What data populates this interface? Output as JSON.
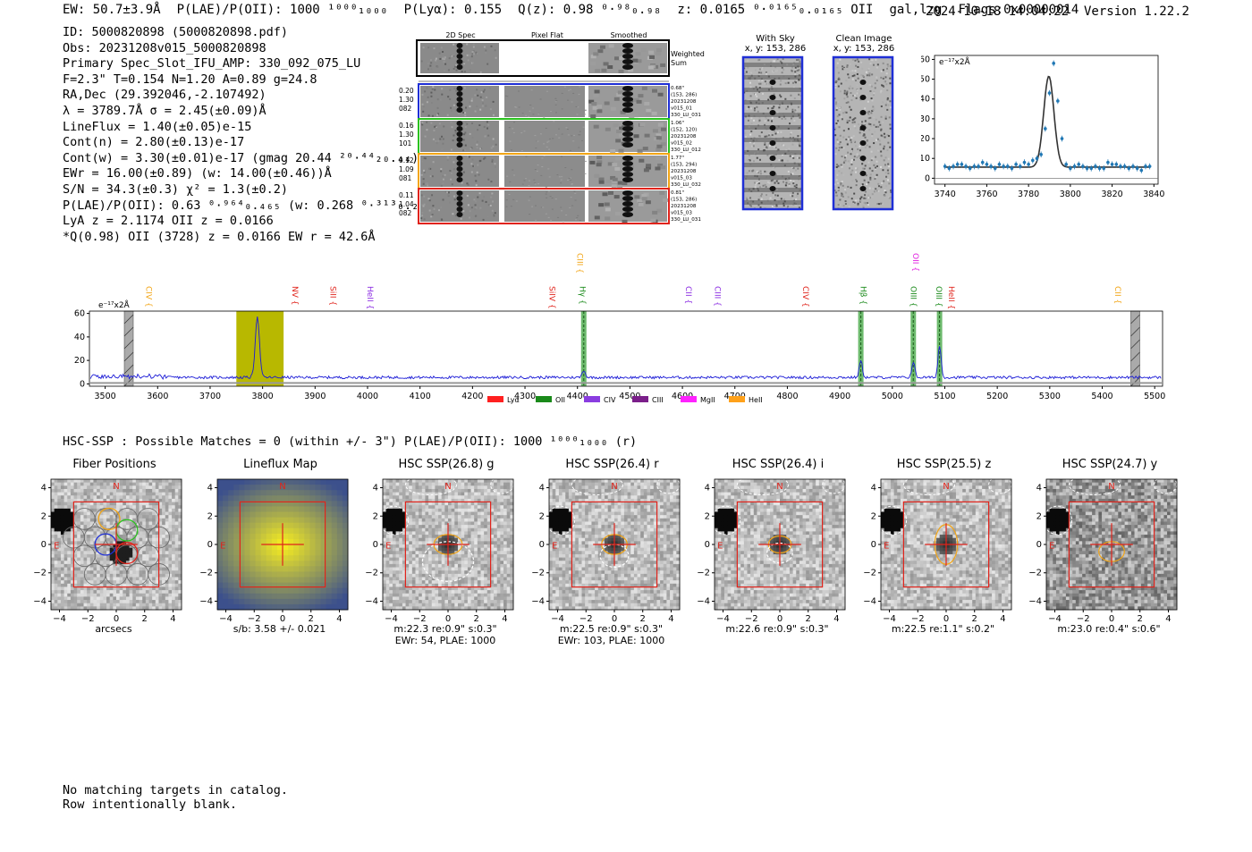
{
  "header": {
    "ew": "EW: 50.7±3.9Å",
    "plae": "P(LAE)/P(OII): 1000 ¹⁰⁰⁰₁₀₀₀",
    "plya": "P(Lyα): 0.155",
    "qz": "Q(z): 0.98 ⁰·⁹⁸₀.₉₈",
    "z": "z: 0.0165 ⁰·⁰¹⁶⁵₀.₀₁₆₅ OII",
    "cls": "gal,lzg",
    "flags": "Flags:0x00000014",
    "datetime": "2024-10-18 14:04:22",
    "version": "Version 1.22.2"
  },
  "info_lines": [
    "ID: 5000820898 (5000820898.pdf)",
    "Obs: 20231208v015_5000820898",
    "Primary Spec_Slot_IFU_AMP: 330_092_075_LU",
    "F=2.3\"  T=0.154  N=1.20  A=0.89  g=24.8",
    "RA,Dec (29.392046,-2.107492)",
    "λ = 3789.7Å   σ = 2.45(±0.09)Å",
    "LineFlux = 1.40(±0.05)e-15",
    "Cont(n) = 2.80(±0.13)e-17",
    "Cont(w) = 3.30(±0.01)e-17 (gmag 20.44 ²⁰·⁴⁴₂₀.₄₄)",
    "EWr = 16.00(±0.89) (w: 14.00(±0.46))Å",
    "S/N = 34.3(±0.3)  χ² = 1.3(±0.2)",
    "P(LAE)/P(OII): 0.63 ⁰·⁹⁶⁴₀.₄₆₅ (w: 0.268 ⁰·³¹³₀.₂₃₉)",
    "LyA z = 2.1174  OII z = 0.0166",
    "*Q(0.98) OII (3728) z = 0.0166  EW r = 42.6Å"
  ],
  "spec2d": {
    "col_headers": [
      "2D Spec",
      "Pixel Flat",
      "Smoothed"
    ],
    "weighted_label": "Weighted Sum",
    "rows": [
      {
        "left": [
          "0.20",
          "1.30",
          "082"
        ],
        "right": [
          "0.68\"",
          "(153, 286)",
          "20231208",
          "v015_01",
          "330_LU_031"
        ],
        "color": "#1f2fd6"
      },
      {
        "left": [
          "0.16",
          "1.30",
          "101"
        ],
        "right": [
          "1.06\"",
          "(152, 120)",
          "20231208",
          "v015_02",
          "330_LU_012"
        ],
        "color": "#2bc21f"
      },
      {
        "left": [
          "0.12",
          "1.09",
          "081"
        ],
        "right": [
          "1.77\"",
          "(153, 294)",
          "20231208",
          "v015_03",
          "330_LU_032"
        ],
        "color": "#f2a516"
      },
      {
        "left": [
          "0.11",
          "1.04",
          "082"
        ],
        "right": [
          "0.81\"",
          "(153, 286)",
          "20231208",
          "v015_03",
          "330_LU_031"
        ],
        "color": "#e0231b"
      }
    ]
  },
  "with_sky": {
    "title": "With Sky",
    "coords": "x, y: 153, 286"
  },
  "clean_image": {
    "title": "Clean Image",
    "coords": "x, y: 153, 286"
  },
  "chart_data": [
    {
      "type": "scatter",
      "title": "line fit",
      "ylabel": "e⁻¹⁷x2Å",
      "xlim": [
        3735,
        3842
      ],
      "ylim": [
        -3,
        62
      ],
      "xticks": [
        3740,
        3760,
        3780,
        3800,
        3820,
        3840
      ],
      "yticks": [
        0,
        10,
        20,
        30,
        40,
        50,
        60
      ],
      "points_x": [
        3740,
        3742,
        3744,
        3746,
        3748,
        3750,
        3752,
        3754,
        3756,
        3758,
        3760,
        3762,
        3764,
        3766,
        3768,
        3770,
        3772,
        3774,
        3776,
        3778,
        3780,
        3782,
        3784,
        3786,
        3788,
        3790,
        3792,
        3794,
        3796,
        3798,
        3800,
        3802,
        3804,
        3806,
        3808,
        3810,
        3812,
        3814,
        3816,
        3818,
        3820,
        3822,
        3824,
        3826,
        3828,
        3830,
        3832,
        3834,
        3836,
        3838
      ],
      "points_y": [
        6,
        5,
        6,
        7,
        7,
        6,
        5,
        6,
        6,
        8,
        7,
        6,
        5,
        7,
        6,
        6,
        5,
        7,
        6,
        8,
        7,
        9,
        10,
        12,
        25,
        43,
        58,
        39,
        20,
        7,
        5,
        6,
        7,
        6,
        5,
        5,
        6,
        5,
        5,
        8,
        7,
        7,
        6,
        6,
        5,
        6,
        5,
        4,
        6,
        6
      ],
      "model": {
        "center": 3789.7,
        "sigma": 2.45,
        "continuum": 5.6,
        "peak": 51.5
      }
    },
    {
      "type": "line",
      "title": "full spectrum",
      "ylabel": "e⁻¹⁷x2Å",
      "xlim": [
        3470,
        5515
      ],
      "ylim": [
        -2,
        62
      ],
      "xticks": [
        3500,
        3600,
        3700,
        3800,
        3900,
        4000,
        4100,
        4200,
        4300,
        4400,
        4500,
        4600,
        4700,
        4800,
        4900,
        5000,
        5100,
        5200,
        5300,
        5400,
        5500
      ],
      "yticks": [
        0,
        20,
        40,
        60
      ],
      "continuum": 5.5,
      "peaks": [
        {
          "x": 3790,
          "height": 52,
          "sigma": 4
        },
        {
          "x": 4412,
          "height": 6,
          "sigma": 3
        },
        {
          "x": 4940,
          "height": 14,
          "sigma": 3
        },
        {
          "x": 5040,
          "height": 13,
          "sigma": 3
        },
        {
          "x": 5090,
          "height": 27,
          "sigma": 3
        }
      ],
      "yellow_band": [
        3750,
        3840
      ],
      "green_bands": [
        4412,
        4940,
        5040,
        5090
      ],
      "hatched_bands": [
        3545,
        5463
      ],
      "line_labels": [
        {
          "text": "CIV",
          "x": 3583,
          "color": "#f2a516",
          "row": 1
        },
        {
          "text": "NV",
          "x": 3862,
          "color": "#e0231b",
          "row": 1
        },
        {
          "text": "SiII",
          "x": 3934,
          "color": "#e0231b",
          "row": 1
        },
        {
          "text": "HeII",
          "x": 4005,
          "color": "#8a2be2",
          "row": 1
        },
        {
          "text": "SiIV",
          "x": 4352,
          "color": "#e0231b",
          "row": 1
        },
        {
          "text": "CIII",
          "x": 4405,
          "color": "#f2a516",
          "row": 0
        },
        {
          "text": "Hγ",
          "x": 4410,
          "color": "#1a8a1a",
          "row": 1
        },
        {
          "text": "CII",
          "x": 4612,
          "color": "#8a2be2",
          "row": 1
        },
        {
          "text": "CIII",
          "x": 4667,
          "color": "#8a2be2",
          "row": 1
        },
        {
          "text": "CIV",
          "x": 4835,
          "color": "#e0231b",
          "row": 1
        },
        {
          "text": "Hβ",
          "x": 4945,
          "color": "#1a8a1a",
          "row": 1
        },
        {
          "text": "OII",
          "x": 5045,
          "color": "#e020e0",
          "row": 0
        },
        {
          "text": "OIII",
          "x": 5040,
          "color": "#1a8a1a",
          "row": 1
        },
        {
          "text": "OIII",
          "x": 5089,
          "color": "#1a8a1a",
          "row": 1
        },
        {
          "text": "HeII",
          "x": 5113,
          "color": "#e0231b",
          "row": 1
        },
        {
          "text": "CII",
          "x": 5430,
          "color": "#f2a516",
          "row": 1
        }
      ],
      "legend": [
        {
          "text": "Lyα",
          "color": "#ff2020"
        },
        {
          "text": "OII",
          "color": "#1a8a1a"
        },
        {
          "text": "CIV",
          "color": "#8a3de0"
        },
        {
          "text": "CIII",
          "color": "#7b1f8a"
        },
        {
          "text": "MgII",
          "color": "#ff22ff"
        },
        {
          "text": "HeII",
          "color": "#ffa11a"
        }
      ]
    }
  ],
  "hsc": {
    "header": "HSC-SSP : Possible Matches = 0 (within +/- 3\")  P(LAE)/P(OII): 1000 ¹⁰⁰⁰₁₀₀₀ (r)",
    "axis_ticks": [
      "-4",
      "-2",
      "0",
      "2",
      "4"
    ],
    "north": "N",
    "east": "E",
    "panels": [
      {
        "title": "Fiber Positions",
        "under1": "arcsecs",
        "under2": "",
        "kind": "fiber"
      },
      {
        "title": "Lineflux Map",
        "under1": "s/b: 3.58 +/- 0.021",
        "under2": "",
        "kind": "flux"
      },
      {
        "title": "HSC SSP(26.8) g",
        "under1": "m:22.3  re:0.9\"  s:0.3\"",
        "under2": "EWr: 54, PLAE: 1000",
        "kind": "g"
      },
      {
        "title": "HSC SSP(26.4) r",
        "under1": "m:22.5  re:0.9\"  s:0.3\"",
        "under2": "EWr: 103, PLAE: 1000",
        "kind": "r"
      },
      {
        "title": "HSC SSP(26.4) i",
        "under1": "m:22.6  re:0.9\"  s:0.3\"",
        "under2": "",
        "kind": "i"
      },
      {
        "title": "HSC SSP(25.5) z",
        "under1": "m:22.5  re:1.1\"  s:0.2\"",
        "under2": "",
        "kind": "z"
      },
      {
        "title": "HSC SSP(24.7) y",
        "under1": "m:23.0  re:0.4\"  s:0.6\"",
        "under2": "",
        "kind": "y"
      }
    ]
  },
  "footer": [
    "No matching targets in catalog.",
    "Row intentionally blank."
  ],
  "colors": {
    "spectrum": "#1a1ad6",
    "fit_points": "#1f77b4",
    "model": "#333333",
    "yellow": "#b8b800",
    "green": "#3ca33c"
  }
}
